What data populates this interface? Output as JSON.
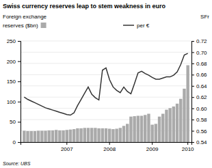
{
  "chart_data": {
    "type": "bar",
    "title": "Swiss currency reserves leap to stem weakness in euro",
    "ylabel": "Foreign exchange",
    "y2label": "SFr",
    "annotations": [
      "Source: UBS"
    ],
    "categories": [
      null,
      null,
      null,
      null,
      null,
      null,
      null,
      null,
      null,
      null,
      null,
      null,
      "2007",
      null,
      null,
      null,
      null,
      null,
      null,
      null,
      null,
      null,
      null,
      null,
      "2008",
      null,
      null,
      null,
      null,
      null,
      null,
      null,
      null,
      null,
      null,
      null,
      "2009",
      null,
      null,
      null,
      null,
      null,
      null,
      null,
      null,
      null,
      "2010"
    ],
    "series": [
      {
        "name": "reserves ($bn)",
        "type": "bar",
        "color": "#aaaaaa",
        "values": [
          28,
          27,
          27,
          27,
          28,
          28,
          28,
          29,
          29,
          30,
          29,
          29,
          30,
          31,
          32,
          34,
          34,
          35,
          35,
          35,
          35,
          34,
          34,
          34,
          33,
          32,
          33,
          35,
          40,
          45,
          63,
          64,
          65,
          65,
          67,
          70,
          43,
          45,
          63,
          70,
          80,
          84,
          88,
          95,
          107,
          132,
          190
        ]
      },
      {
        "name": "per €",
        "type": "line",
        "axis": "y2",
        "color": "#333333",
        "values": [
          0.62,
          0.616,
          0.613,
          0.61,
          0.607,
          0.604,
          0.601,
          0.599,
          0.597,
          0.595,
          0.593,
          0.591,
          0.589,
          0.588,
          0.592,
          0.605,
          0.616,
          0.627,
          0.638,
          0.625,
          0.619,
          0.615,
          0.668,
          0.672,
          0.651,
          0.638,
          0.632,
          0.628,
          0.638,
          0.63,
          0.626,
          0.644,
          0.663,
          0.666,
          0.662,
          0.659,
          0.655,
          0.652,
          0.652,
          0.654,
          0.656,
          0.656,
          0.659,
          0.665,
          0.678,
          0.695,
          0.698
        ]
      }
    ],
    "ylim": [
      0,
      250
    ],
    "yticks": [
      0,
      50,
      100,
      150,
      200,
      250
    ],
    "y2lim": [
      0.54,
      0.72
    ],
    "y2ticks": [
      0.54,
      0.56,
      0.58,
      {
        "value": 0.6,
        "label": "0.60"
      },
      0.62,
      0.64,
      0.66,
      0.68,
      {
        "value": 0.7,
        "label": "0.70"
      },
      0.72
    ],
    "grid": true
  }
}
